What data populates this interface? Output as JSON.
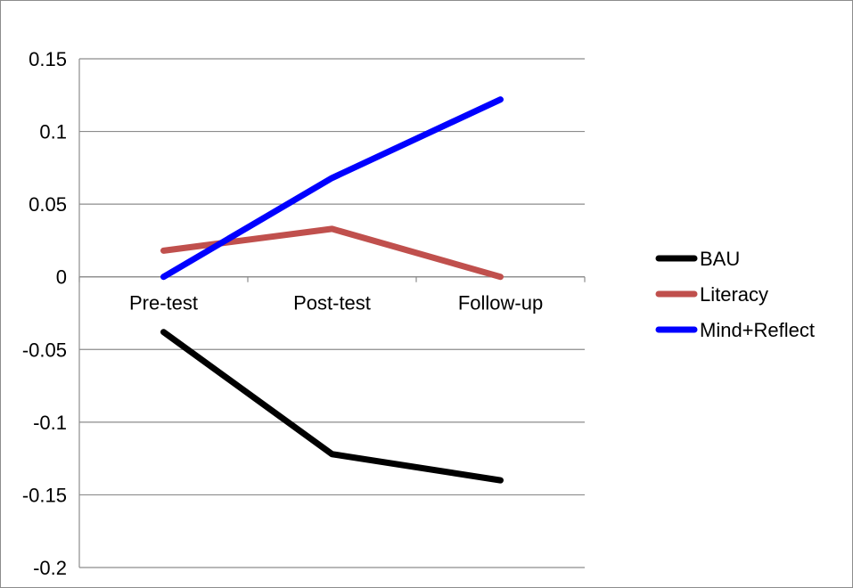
{
  "chart_data": {
    "type": "line",
    "title": "",
    "xlabel": "",
    "ylabel": "",
    "categories": [
      "Pre-test",
      "Post-test",
      "Follow-up"
    ],
    "y_ticks": [
      "0.15",
      "0.1",
      "0.05",
      "0",
      "-0.05",
      "-0.1",
      "-0.15",
      "-0.2"
    ],
    "y_tick_values": [
      0.15,
      0.1,
      0.05,
      0,
      -0.05,
      -0.1,
      -0.15,
      -0.2
    ],
    "ylim": [
      -0.2,
      0.15
    ],
    "grid": "horizontal",
    "legend_position": "right",
    "series": [
      {
        "name": "BAU",
        "color": "#000000",
        "values": [
          -0.038,
          -0.122,
          -0.14
        ]
      },
      {
        "name": "Literacy",
        "color": "#c0504d",
        "values": [
          0.018,
          0.033,
          0.0
        ]
      },
      {
        "name": "Mind+Reflect",
        "color": "#0000ff",
        "values": [
          0.0,
          0.068,
          0.122
        ]
      }
    ]
  }
}
